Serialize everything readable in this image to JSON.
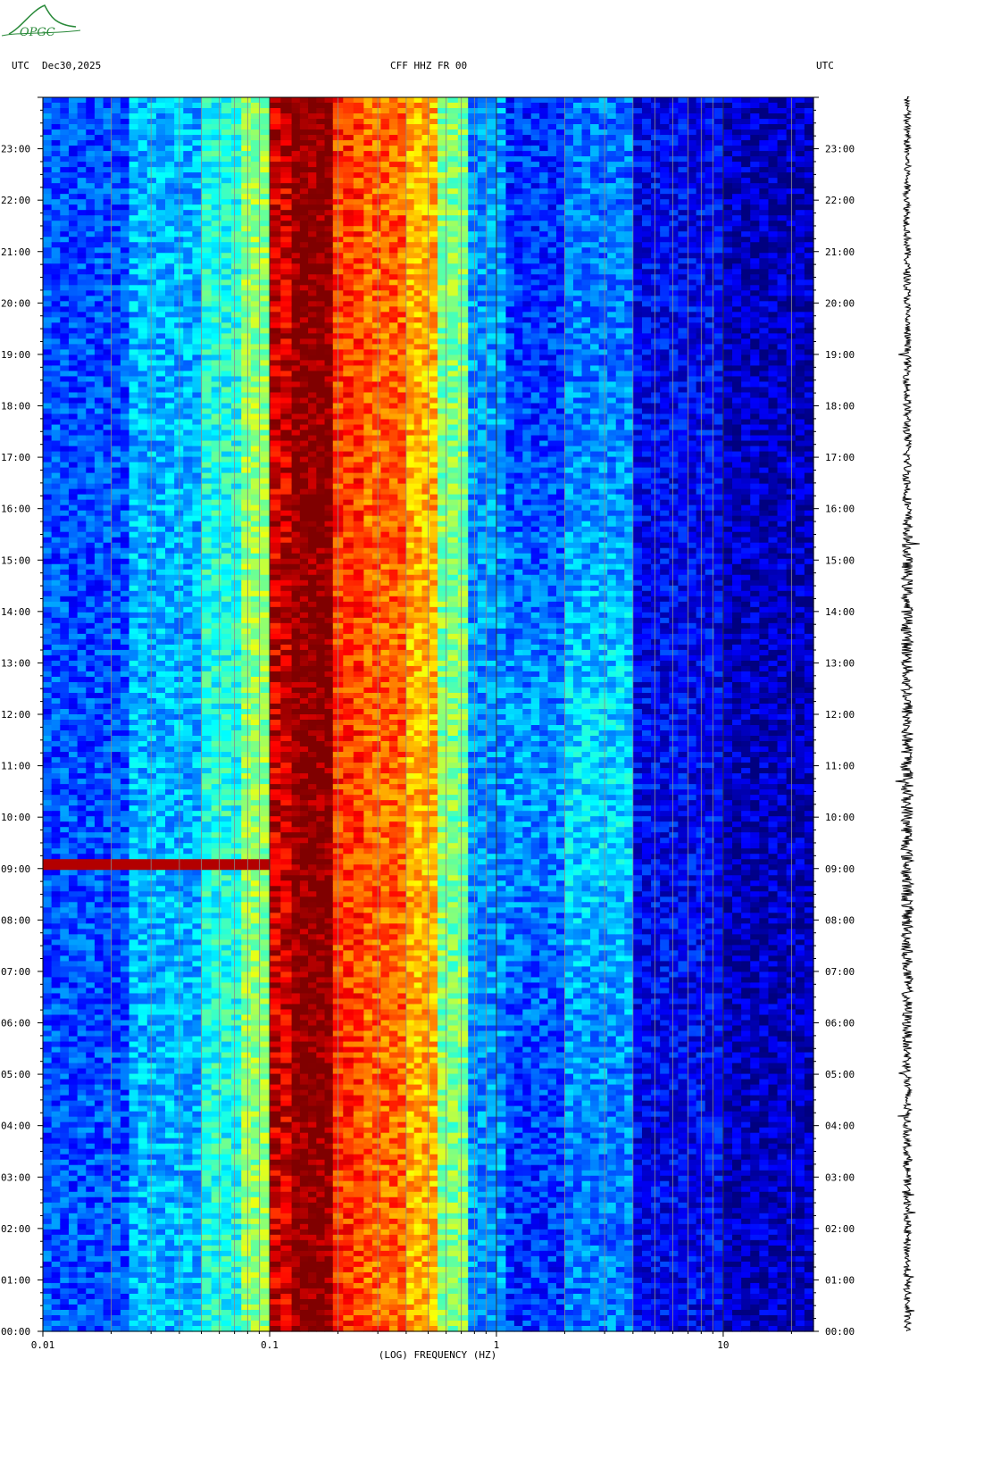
{
  "header": {
    "left_tz": "UTC",
    "date": "Dec30,2025",
    "station": "CFF HHZ FR 00",
    "right_tz": "UTC"
  },
  "logo": {
    "text": "OPGC",
    "color": "#2a8a3a"
  },
  "chart_data": {
    "type": "heatmap",
    "title": "CFF HHZ FR 00",
    "xlabel": "(LOG) FREQUENCY (HZ)",
    "x_scale": "log",
    "xlim": [
      0.01,
      25
    ],
    "x_ticks": [
      {
        "value": 0.01,
        "label": "0.01"
      },
      {
        "value": 0.1,
        "label": "0.1"
      },
      {
        "value": 1,
        "label": "1"
      },
      {
        "value": 10,
        "label": "10"
      }
    ],
    "ylim_hours": [
      0,
      24
    ],
    "y_ticks": [
      "00:00",
      "01:00",
      "02:00",
      "03:00",
      "04:00",
      "05:00",
      "06:00",
      "07:00",
      "08:00",
      "09:00",
      "10:00",
      "11:00",
      "12:00",
      "13:00",
      "14:00",
      "15:00",
      "16:00",
      "17:00",
      "18:00",
      "19:00",
      "20:00",
      "21:00",
      "22:00",
      "23:00"
    ],
    "bands": [
      {
        "f0": 0.01,
        "f1": 0.024,
        "level": 0.2
      },
      {
        "f0": 0.024,
        "f1": 0.05,
        "level": 0.3
      },
      {
        "f0": 0.05,
        "f1": 0.075,
        "level": 0.4
      },
      {
        "f0": 0.075,
        "f1": 0.1,
        "level": 0.52
      },
      {
        "f0": 0.1,
        "f1": 0.125,
        "level": 0.9
      },
      {
        "f0": 0.125,
        "f1": 0.19,
        "level": 1.0
      },
      {
        "f0": 0.19,
        "f1": 0.26,
        "level": 0.82
      },
      {
        "f0": 0.26,
        "f1": 0.4,
        "level": 0.78
      },
      {
        "f0": 0.4,
        "f1": 0.55,
        "level": 0.7
      },
      {
        "f0": 0.55,
        "f1": 0.75,
        "level": 0.5
      },
      {
        "f0": 0.75,
        "f1": 1.1,
        "level": 0.27
      },
      {
        "f0": 1.1,
        "f1": 2.0,
        "level": 0.17
      },
      {
        "f0": 2.0,
        "f1": 4.0,
        "level": 0.24
      },
      {
        "f0": 4.0,
        "f1": 10,
        "level": 0.12
      },
      {
        "f0": 10,
        "f1": 25,
        "level": 0.06
      }
    ],
    "events": [
      {
        "hour": 9.1,
        "f0": 0.01,
        "f1": 0.1,
        "level": 0.95
      }
    ],
    "seismogram_label": ""
  }
}
